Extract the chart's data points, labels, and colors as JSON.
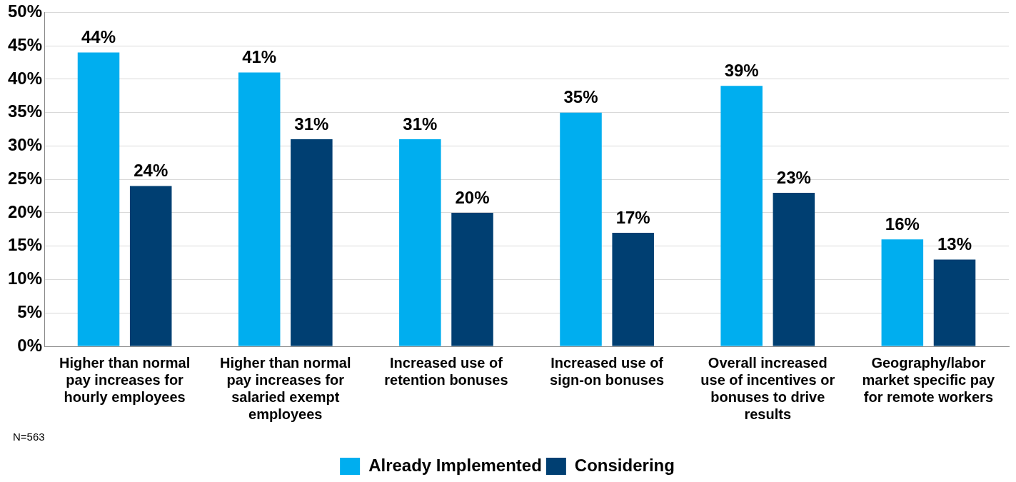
{
  "chart_data": {
    "type": "bar",
    "categories": [
      "Higher than normal pay increases for hourly employees",
      "Higher than normal pay increases for salaried exempt employees",
      "Increased use of retention bonuses",
      "Increased use of sign-on bonuses",
      "Overall increased use of incentives or bonuses to drive results",
      "Geography/labor market specific pay for remote workers"
    ],
    "series": [
      {
        "name": "Already Implemented",
        "color": "#00aeef",
        "values": [
          44,
          41,
          31,
          35,
          39,
          16
        ]
      },
      {
        "name": "Considering",
        "color": "#003f72",
        "values": [
          24,
          31,
          20,
          17,
          23,
          13
        ]
      }
    ],
    "ylim": [
      0,
      50
    ],
    "yticks": [
      {
        "value": 0,
        "label": "0%"
      },
      {
        "value": 5,
        "label": "5%"
      },
      {
        "value": 10,
        "label": "10%"
      },
      {
        "value": 15,
        "label": "15%"
      },
      {
        "value": 20,
        "label": "20%"
      },
      {
        "value": 25,
        "label": "25%"
      },
      {
        "value": 30,
        "label": "30%"
      },
      {
        "value": 35,
        "label": "35%"
      },
      {
        "value": 40,
        "label": "40%"
      },
      {
        "value": 45,
        "label": "45%"
      },
      {
        "value": 50,
        "label": "50%"
      }
    ],
    "grid": "y",
    "legend": "bottom",
    "value_labels": [
      [
        "44%",
        "41%",
        "31%",
        "35%",
        "39%",
        "16%"
      ],
      [
        "24%",
        "31%",
        "20%",
        "17%",
        "23%",
        "13%"
      ]
    ],
    "annotations": [
      "N=563"
    ]
  }
}
